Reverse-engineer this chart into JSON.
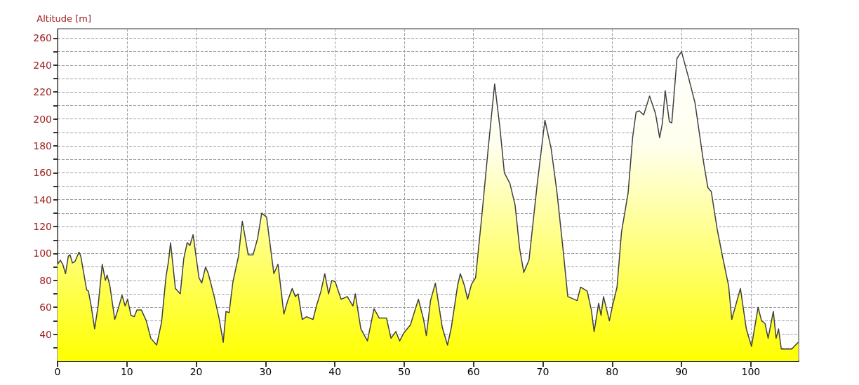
{
  "chart_data": {
    "type": "area",
    "ylabel": "Altitude [m]",
    "x": [
      0,
      0.4,
      0.75,
      1.15,
      1.55,
      1.8,
      2.15,
      2.5,
      3.1,
      3.35,
      4.2,
      4.45,
      4.85,
      5.35,
      5.85,
      6.45,
      6.9,
      7.15,
      7.55,
      8.25,
      8.75,
      9.3,
      9.75,
      10.1,
      10.6,
      11.05,
      11.45,
      12.1,
      12.8,
      13.45,
      14.3,
      15,
      15.65,
      16,
      16.3,
      17,
      17.7,
      18.2,
      18.7,
      19.1,
      19.55,
      20.4,
      20.8,
      21.35,
      21.75,
      22.6,
      23.3,
      23.9,
      24.3,
      24.75,
      25.3,
      26.1,
      26.65,
      27.5,
      28.2,
      28.85,
      29.45,
      30.15,
      31.2,
      31.8,
      32.65,
      33.2,
      33.85,
      34.3,
      34.7,
      35.3,
      35.9,
      36.85,
      37.4,
      38,
      38.55,
      39.1,
      39.55,
      40.05,
      40.9,
      41.8,
      42.6,
      42.95,
      43.75,
      44.7,
      45.65,
      46.4,
      47.45,
      48.1,
      48.8,
      49.35,
      49.95,
      50.9,
      52.05,
      52.8,
      53.2,
      53.8,
      54.5,
      55.5,
      56.25,
      56.8,
      57.7,
      58.1,
      58.7,
      59.15,
      59.7,
      60.3,
      61.2,
      62.1,
      63.05,
      63.8,
      64.45,
      65.25,
      66,
      66.65,
      67.25,
      68,
      69.2,
      70.3,
      71.2,
      72.05,
      72.9,
      73.6,
      74.95,
      75.45,
      76.4,
      77,
      77.4,
      78.05,
      78.4,
      78.75,
      79.6,
      80,
      80.7,
      81.35,
      82.3,
      82.95,
      83.45,
      83.9,
      84.55,
      85.4,
      86.25,
      86.85,
      87.25,
      87.65,
      88.25,
      88.6,
      89.35,
      90,
      90.95,
      91.95,
      93.15,
      93.8,
      94.3,
      95.15,
      95.95,
      96.8,
      97.25,
      98.5,
      99.35,
      100.1,
      101.05,
      101.55,
      102.05,
      102.5,
      103.25,
      103.65,
      104,
      104.4,
      105.9,
      106.45,
      106.85
    ],
    "series": [
      {
        "color": "#ffff00",
        "values": [
          92,
          95,
          92,
          85,
          98,
          99,
          93,
          94,
          101,
          98,
          73,
          72,
          61,
          44,
          61,
          92,
          80,
          84,
          76,
          51,
          59,
          69,
          61,
          66,
          54,
          53,
          58,
          58,
          50,
          37,
          32,
          49,
          83,
          94,
          108,
          74,
          70,
          96,
          108,
          106,
          114,
          82,
          78,
          90,
          85,
          68,
          52,
          34,
          57,
          56,
          79,
          98,
          124,
          99,
          99,
          111,
          130,
          127,
          85,
          92,
          55,
          65,
          74,
          68,
          70,
          51,
          53,
          51,
          62,
          72,
          85,
          70,
          80,
          79,
          66,
          68,
          61,
          70,
          44,
          35,
          59,
          52,
          52,
          37,
          42,
          35,
          41,
          47,
          66,
          51,
          39,
          65,
          78,
          45,
          32,
          45,
          76,
          85,
          76,
          66,
          77,
          82,
          128,
          177,
          226,
          194,
          160,
          152,
          136,
          104,
          86,
          95,
          152,
          199,
          178,
          145,
          104,
          68,
          65,
          75,
          72,
          58,
          42,
          63,
          54,
          68,
          50,
          60,
          75,
          116,
          145,
          186,
          205,
          206,
          203,
          217,
          204,
          186,
          197,
          221,
          198,
          197,
          245,
          250,
          232,
          212,
          169,
          149,
          146,
          118,
          97,
          76,
          51,
          74,
          44,
          31,
          60,
          50,
          48,
          37,
          57,
          37,
          44,
          29,
          29,
          32,
          34
        ]
      }
    ],
    "xlim": [
      0,
      106.9
    ],
    "xticks": [
      0,
      10,
      20,
      30,
      40,
      50,
      60,
      70,
      80,
      90,
      100
    ],
    "ylim": [
      20,
      267
    ],
    "yticks": [
      {
        "value": 30,
        "label": null
      },
      40,
      {
        "value": 50,
        "label": null
      },
      60,
      {
        "value": 70,
        "label": null
      },
      80,
      {
        "value": 90,
        "label": null
      },
      100,
      {
        "value": 110,
        "label": null
      },
      120,
      {
        "value": 130,
        "label": null
      },
      140,
      {
        "value": 150,
        "label": null
      },
      160,
      {
        "value": 170,
        "label": null
      },
      180,
      {
        "value": 190,
        "label": null
      },
      200,
      {
        "value": 210,
        "label": null
      },
      220,
      {
        "value": 230,
        "label": null
      },
      240,
      {
        "value": 250,
        "label": null
      },
      260
    ],
    "grid": true,
    "marker": "none",
    "line_style": "solid"
  }
}
